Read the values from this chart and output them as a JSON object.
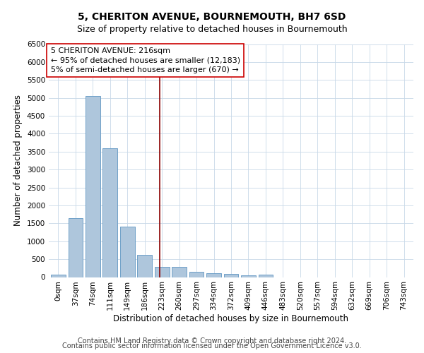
{
  "title": "5, CHERITON AVENUE, BOURNEMOUTH, BH7 6SD",
  "subtitle": "Size of property relative to detached houses in Bournemouth",
  "xlabel": "Distribution of detached houses by size in Bournemouth",
  "ylabel": "Number of detached properties",
  "bar_labels": [
    "0sqm",
    "37sqm",
    "74sqm",
    "111sqm",
    "149sqm",
    "186sqm",
    "223sqm",
    "260sqm",
    "297sqm",
    "334sqm",
    "372sqm",
    "409sqm",
    "446sqm",
    "483sqm",
    "520sqm",
    "557sqm",
    "594sqm",
    "632sqm",
    "669sqm",
    "706sqm",
    "743sqm"
  ],
  "bar_values": [
    75,
    1650,
    5050,
    3600,
    1400,
    620,
    295,
    290,
    145,
    100,
    80,
    50,
    75,
    0,
    0,
    0,
    0,
    0,
    0,
    0,
    0
  ],
  "bar_color": "#aec6dc",
  "bar_edge_color": "#6fa0c8",
  "ylim": [
    0,
    6500
  ],
  "yticks": [
    0,
    500,
    1000,
    1500,
    2000,
    2500,
    3000,
    3500,
    4000,
    4500,
    5000,
    5500,
    6000,
    6500
  ],
  "vline_x": 5.85,
  "vline_color": "#8b0000",
  "annotation_line1": "5 CHERITON AVENUE: 216sqm",
  "annotation_line2": "← 95% of detached houses are smaller (12,183)",
  "annotation_line3": "5% of semi-detached houses are larger (670) →",
  "annotation_box_color": "#ffffff",
  "annotation_box_edge": "#cc0000",
  "footer_line1": "Contains HM Land Registry data © Crown copyright and database right 2024.",
  "footer_line2": "Contains public sector information licensed under the Open Government Licence v3.0.",
  "bg_color": "#ffffff",
  "grid_color": "#c8d8e8",
  "title_fontsize": 10,
  "subtitle_fontsize": 9,
  "axis_label_fontsize": 8.5,
  "tick_fontsize": 7.5,
  "annotation_fontsize": 8,
  "footer_fontsize": 7
}
